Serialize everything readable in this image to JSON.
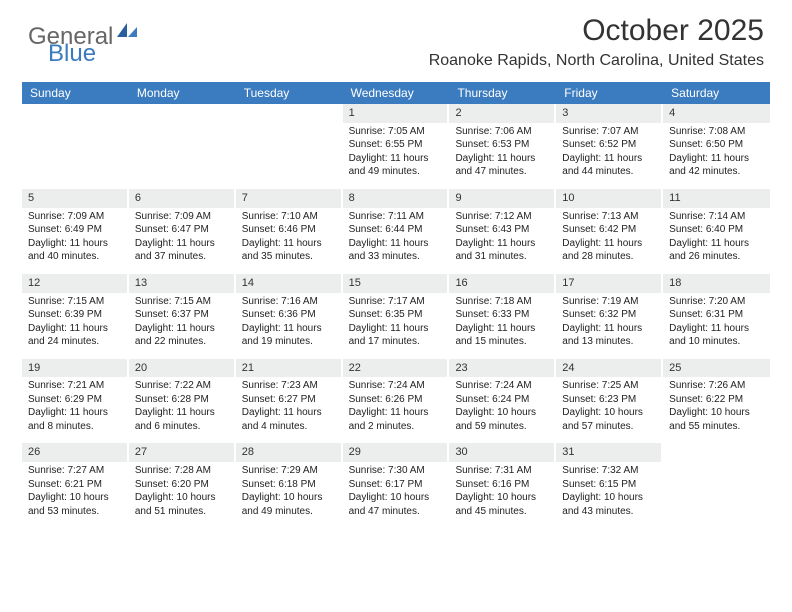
{
  "logo": {
    "text1": "General",
    "text2": "Blue"
  },
  "title": "October 2025",
  "location": "Roanoke Rapids, North Carolina, United States",
  "colors": {
    "header_bg": "#3b7bbf",
    "header_text": "#ffffff",
    "daynum_bg": "#eceded",
    "body_text": "#222222",
    "page_bg": "#ffffff",
    "logo_gray": "#666666",
    "logo_blue": "#3b7bbf"
  },
  "typography": {
    "title_fontsize": 30,
    "location_fontsize": 16,
    "dayheader_fontsize": 12,
    "cell_fontsize": 10,
    "font_family": "Arial"
  },
  "day_names": [
    "Sunday",
    "Monday",
    "Tuesday",
    "Wednesday",
    "Thursday",
    "Friday",
    "Saturday"
  ],
  "weeks": [
    [
      {
        "n": "",
        "l1": "",
        "l2": "",
        "l3": "",
        "l4": ""
      },
      {
        "n": "",
        "l1": "",
        "l2": "",
        "l3": "",
        "l4": ""
      },
      {
        "n": "",
        "l1": "",
        "l2": "",
        "l3": "",
        "l4": ""
      },
      {
        "n": "1",
        "l1": "Sunrise: 7:05 AM",
        "l2": "Sunset: 6:55 PM",
        "l3": "Daylight: 11 hours",
        "l4": "and 49 minutes."
      },
      {
        "n": "2",
        "l1": "Sunrise: 7:06 AM",
        "l2": "Sunset: 6:53 PM",
        "l3": "Daylight: 11 hours",
        "l4": "and 47 minutes."
      },
      {
        "n": "3",
        "l1": "Sunrise: 7:07 AM",
        "l2": "Sunset: 6:52 PM",
        "l3": "Daylight: 11 hours",
        "l4": "and 44 minutes."
      },
      {
        "n": "4",
        "l1": "Sunrise: 7:08 AM",
        "l2": "Sunset: 6:50 PM",
        "l3": "Daylight: 11 hours",
        "l4": "and 42 minutes."
      }
    ],
    [
      {
        "n": "5",
        "l1": "Sunrise: 7:09 AM",
        "l2": "Sunset: 6:49 PM",
        "l3": "Daylight: 11 hours",
        "l4": "and 40 minutes."
      },
      {
        "n": "6",
        "l1": "Sunrise: 7:09 AM",
        "l2": "Sunset: 6:47 PM",
        "l3": "Daylight: 11 hours",
        "l4": "and 37 minutes."
      },
      {
        "n": "7",
        "l1": "Sunrise: 7:10 AM",
        "l2": "Sunset: 6:46 PM",
        "l3": "Daylight: 11 hours",
        "l4": "and 35 minutes."
      },
      {
        "n": "8",
        "l1": "Sunrise: 7:11 AM",
        "l2": "Sunset: 6:44 PM",
        "l3": "Daylight: 11 hours",
        "l4": "and 33 minutes."
      },
      {
        "n": "9",
        "l1": "Sunrise: 7:12 AM",
        "l2": "Sunset: 6:43 PM",
        "l3": "Daylight: 11 hours",
        "l4": "and 31 minutes."
      },
      {
        "n": "10",
        "l1": "Sunrise: 7:13 AM",
        "l2": "Sunset: 6:42 PM",
        "l3": "Daylight: 11 hours",
        "l4": "and 28 minutes."
      },
      {
        "n": "11",
        "l1": "Sunrise: 7:14 AM",
        "l2": "Sunset: 6:40 PM",
        "l3": "Daylight: 11 hours",
        "l4": "and 26 minutes."
      }
    ],
    [
      {
        "n": "12",
        "l1": "Sunrise: 7:15 AM",
        "l2": "Sunset: 6:39 PM",
        "l3": "Daylight: 11 hours",
        "l4": "and 24 minutes."
      },
      {
        "n": "13",
        "l1": "Sunrise: 7:15 AM",
        "l2": "Sunset: 6:37 PM",
        "l3": "Daylight: 11 hours",
        "l4": "and 22 minutes."
      },
      {
        "n": "14",
        "l1": "Sunrise: 7:16 AM",
        "l2": "Sunset: 6:36 PM",
        "l3": "Daylight: 11 hours",
        "l4": "and 19 minutes."
      },
      {
        "n": "15",
        "l1": "Sunrise: 7:17 AM",
        "l2": "Sunset: 6:35 PM",
        "l3": "Daylight: 11 hours",
        "l4": "and 17 minutes."
      },
      {
        "n": "16",
        "l1": "Sunrise: 7:18 AM",
        "l2": "Sunset: 6:33 PM",
        "l3": "Daylight: 11 hours",
        "l4": "and 15 minutes."
      },
      {
        "n": "17",
        "l1": "Sunrise: 7:19 AM",
        "l2": "Sunset: 6:32 PM",
        "l3": "Daylight: 11 hours",
        "l4": "and 13 minutes."
      },
      {
        "n": "18",
        "l1": "Sunrise: 7:20 AM",
        "l2": "Sunset: 6:31 PM",
        "l3": "Daylight: 11 hours",
        "l4": "and 10 minutes."
      }
    ],
    [
      {
        "n": "19",
        "l1": "Sunrise: 7:21 AM",
        "l2": "Sunset: 6:29 PM",
        "l3": "Daylight: 11 hours",
        "l4": "and 8 minutes."
      },
      {
        "n": "20",
        "l1": "Sunrise: 7:22 AM",
        "l2": "Sunset: 6:28 PM",
        "l3": "Daylight: 11 hours",
        "l4": "and 6 minutes."
      },
      {
        "n": "21",
        "l1": "Sunrise: 7:23 AM",
        "l2": "Sunset: 6:27 PM",
        "l3": "Daylight: 11 hours",
        "l4": "and 4 minutes."
      },
      {
        "n": "22",
        "l1": "Sunrise: 7:24 AM",
        "l2": "Sunset: 6:26 PM",
        "l3": "Daylight: 11 hours",
        "l4": "and 2 minutes."
      },
      {
        "n": "23",
        "l1": "Sunrise: 7:24 AM",
        "l2": "Sunset: 6:24 PM",
        "l3": "Daylight: 10 hours",
        "l4": "and 59 minutes."
      },
      {
        "n": "24",
        "l1": "Sunrise: 7:25 AM",
        "l2": "Sunset: 6:23 PM",
        "l3": "Daylight: 10 hours",
        "l4": "and 57 minutes."
      },
      {
        "n": "25",
        "l1": "Sunrise: 7:26 AM",
        "l2": "Sunset: 6:22 PM",
        "l3": "Daylight: 10 hours",
        "l4": "and 55 minutes."
      }
    ],
    [
      {
        "n": "26",
        "l1": "Sunrise: 7:27 AM",
        "l2": "Sunset: 6:21 PM",
        "l3": "Daylight: 10 hours",
        "l4": "and 53 minutes."
      },
      {
        "n": "27",
        "l1": "Sunrise: 7:28 AM",
        "l2": "Sunset: 6:20 PM",
        "l3": "Daylight: 10 hours",
        "l4": "and 51 minutes."
      },
      {
        "n": "28",
        "l1": "Sunrise: 7:29 AM",
        "l2": "Sunset: 6:18 PM",
        "l3": "Daylight: 10 hours",
        "l4": "and 49 minutes."
      },
      {
        "n": "29",
        "l1": "Sunrise: 7:30 AM",
        "l2": "Sunset: 6:17 PM",
        "l3": "Daylight: 10 hours",
        "l4": "and 47 minutes."
      },
      {
        "n": "30",
        "l1": "Sunrise: 7:31 AM",
        "l2": "Sunset: 6:16 PM",
        "l3": "Daylight: 10 hours",
        "l4": "and 45 minutes."
      },
      {
        "n": "31",
        "l1": "Sunrise: 7:32 AM",
        "l2": "Sunset: 6:15 PM",
        "l3": "Daylight: 10 hours",
        "l4": "and 43 minutes."
      },
      {
        "n": "",
        "l1": "",
        "l2": "",
        "l3": "",
        "l4": ""
      }
    ]
  ]
}
